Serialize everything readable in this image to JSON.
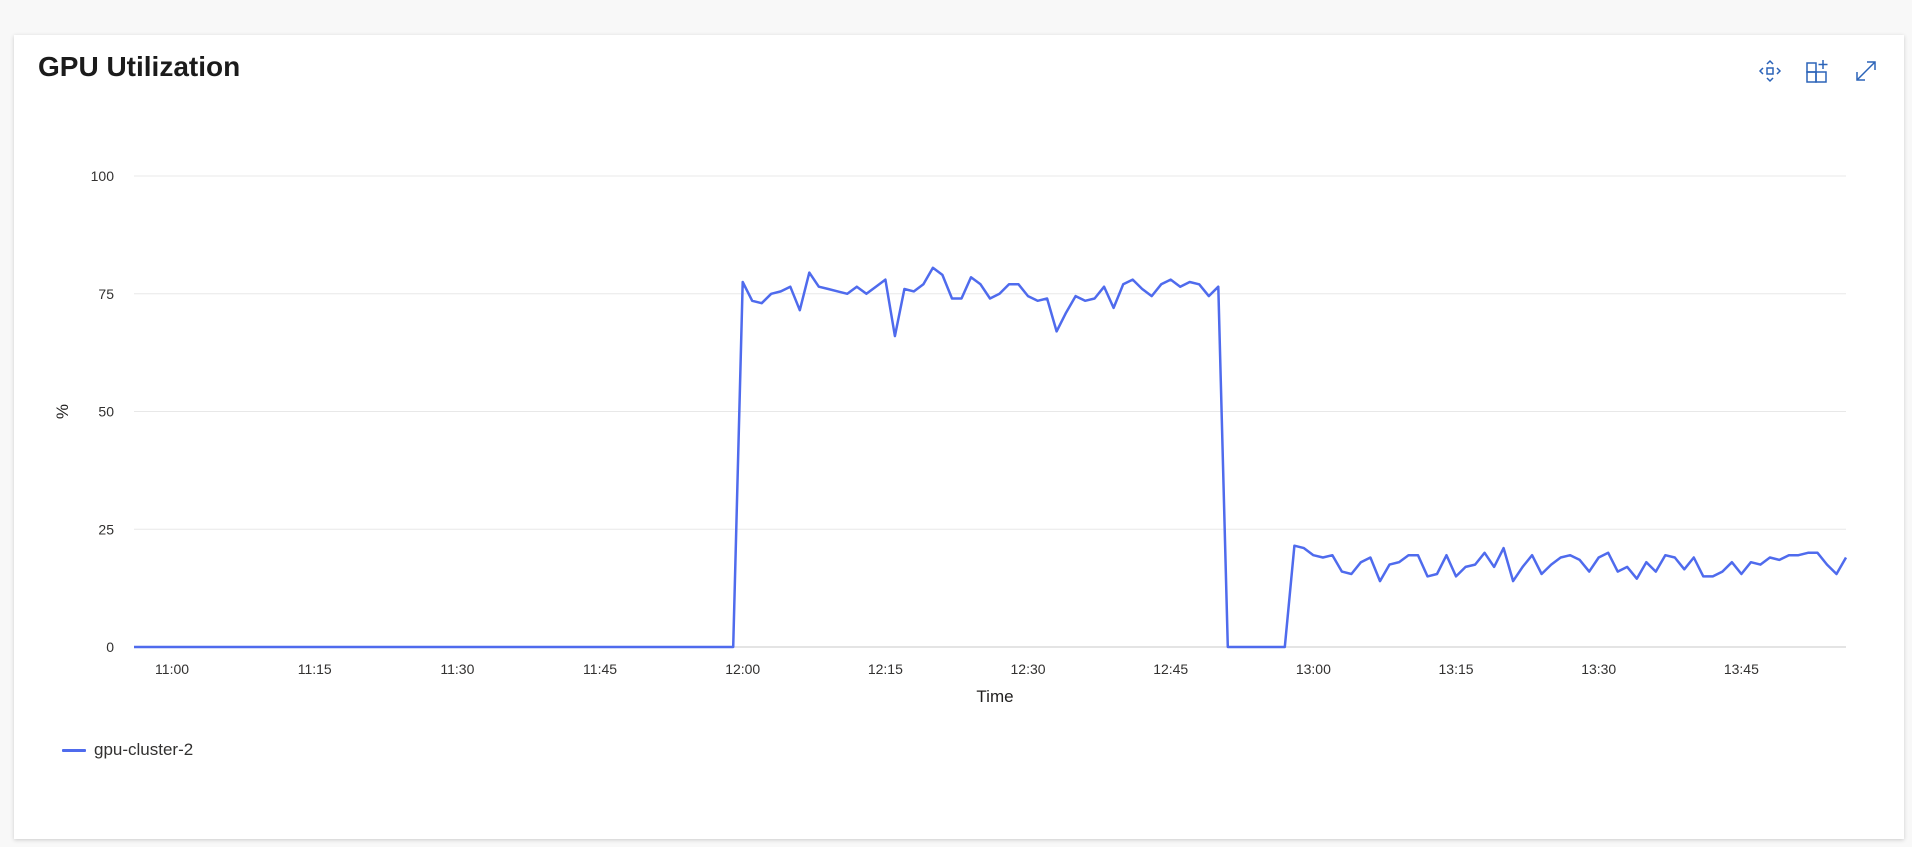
{
  "title": "GPU Utilization",
  "toolbar": {
    "icons": [
      "move-icon",
      "add-to-dashboard-icon",
      "expand-icon"
    ]
  },
  "colors": {
    "series": "#4f6bed",
    "grid": "#e8e8e8",
    "axis": "#c8c8c8",
    "icon": "#2b63b8"
  },
  "chart_data": {
    "type": "line",
    "title": "GPU Utilization",
    "xlabel": "Time",
    "ylabel": "%",
    "ylim": [
      0,
      100
    ],
    "yticks": [
      0,
      25,
      50,
      75,
      100
    ],
    "xrange": [
      "10:56",
      "13:56"
    ],
    "xticks": [
      "11:00",
      "11:15",
      "11:30",
      "11:45",
      "12:00",
      "12:15",
      "12:30",
      "12:45",
      "13:00",
      "13:15",
      "13:30",
      "13:45"
    ],
    "grid": true,
    "legend_position": "bottom-left",
    "series": [
      {
        "name": "gpu-cluster-2",
        "points": [
          [
            "10:56",
            0
          ],
          [
            "11:59",
            0
          ],
          [
            "12:00",
            77.5
          ],
          [
            "12:01",
            73.5
          ],
          [
            "12:02",
            73
          ],
          [
            "12:03",
            75
          ],
          [
            "12:04",
            75.5
          ],
          [
            "12:05",
            76.5
          ],
          [
            "12:06",
            71.5
          ],
          [
            "12:07",
            79.5
          ],
          [
            "12:08",
            76.5
          ],
          [
            "12:09",
            76
          ],
          [
            "12:10",
            75.5
          ],
          [
            "12:11",
            75
          ],
          [
            "12:12",
            76.5
          ],
          [
            "12:13",
            75
          ],
          [
            "12:14",
            76.5
          ],
          [
            "12:15",
            78
          ],
          [
            "12:16",
            66
          ],
          [
            "12:17",
            76
          ],
          [
            "12:18",
            75.5
          ],
          [
            "12:19",
            77
          ],
          [
            "12:20",
            80.5
          ],
          [
            "12:21",
            79
          ],
          [
            "12:22",
            74
          ],
          [
            "12:23",
            74
          ],
          [
            "12:24",
            78.5
          ],
          [
            "12:25",
            77
          ],
          [
            "12:26",
            74
          ],
          [
            "12:27",
            75
          ],
          [
            "12:28",
            77
          ],
          [
            "12:29",
            77
          ],
          [
            "12:30",
            74.5
          ],
          [
            "12:31",
            73.5
          ],
          [
            "12:32",
            74
          ],
          [
            "12:33",
            67
          ],
          [
            "12:34",
            71
          ],
          [
            "12:35",
            74.5
          ],
          [
            "12:36",
            73.5
          ],
          [
            "12:37",
            74
          ],
          [
            "12:38",
            76.5
          ],
          [
            "12:39",
            72
          ],
          [
            "12:40",
            77
          ],
          [
            "12:41",
            78
          ],
          [
            "12:42",
            76
          ],
          [
            "12:43",
            74.5
          ],
          [
            "12:44",
            77
          ],
          [
            "12:45",
            78
          ],
          [
            "12:46",
            76.5
          ],
          [
            "12:47",
            77.5
          ],
          [
            "12:48",
            77
          ],
          [
            "12:49",
            74.5
          ],
          [
            "12:50",
            76.5
          ],
          [
            "12:51",
            0
          ],
          [
            "12:57",
            0
          ],
          [
            "12:58",
            21.5
          ],
          [
            "12:59",
            21
          ],
          [
            "13:00",
            19.5
          ],
          [
            "13:01",
            19
          ],
          [
            "13:02",
            19.5
          ],
          [
            "13:03",
            16
          ],
          [
            "13:04",
            15.5
          ],
          [
            "13:05",
            18
          ],
          [
            "13:06",
            19
          ],
          [
            "13:07",
            14
          ],
          [
            "13:08",
            17.5
          ],
          [
            "13:09",
            18
          ],
          [
            "13:10",
            19.5
          ],
          [
            "13:11",
            19.5
          ],
          [
            "13:12",
            15
          ],
          [
            "13:13",
            15.5
          ],
          [
            "13:14",
            19.5
          ],
          [
            "13:15",
            15
          ],
          [
            "13:16",
            17
          ],
          [
            "13:17",
            17.5
          ],
          [
            "13:18",
            20
          ],
          [
            "13:19",
            17
          ],
          [
            "13:20",
            21
          ],
          [
            "13:21",
            14
          ],
          [
            "13:22",
            17
          ],
          [
            "13:23",
            19.5
          ],
          [
            "13:24",
            15.5
          ],
          [
            "13:25",
            17.5
          ],
          [
            "13:26",
            19
          ],
          [
            "13:27",
            19.5
          ],
          [
            "13:28",
            18.5
          ],
          [
            "13:29",
            16
          ],
          [
            "13:30",
            19
          ],
          [
            "13:31",
            20
          ],
          [
            "13:32",
            16
          ],
          [
            "13:33",
            17
          ],
          [
            "13:34",
            14.5
          ],
          [
            "13:35",
            18
          ],
          [
            "13:36",
            16
          ],
          [
            "13:37",
            19.5
          ],
          [
            "13:38",
            19
          ],
          [
            "13:39",
            16.5
          ],
          [
            "13:40",
            19
          ],
          [
            "13:41",
            15
          ],
          [
            "13:42",
            15
          ],
          [
            "13:43",
            16
          ],
          [
            "13:44",
            18
          ],
          [
            "13:45",
            15.5
          ],
          [
            "13:46",
            18
          ],
          [
            "13:47",
            17.5
          ],
          [
            "13:48",
            19
          ],
          [
            "13:49",
            18.5
          ],
          [
            "13:50",
            19.5
          ],
          [
            "13:51",
            19.5
          ],
          [
            "13:52",
            20
          ],
          [
            "13:53",
            20
          ],
          [
            "13:54",
            17.5
          ],
          [
            "13:55",
            15.5
          ],
          [
            "13:56",
            19
          ]
        ]
      }
    ]
  }
}
